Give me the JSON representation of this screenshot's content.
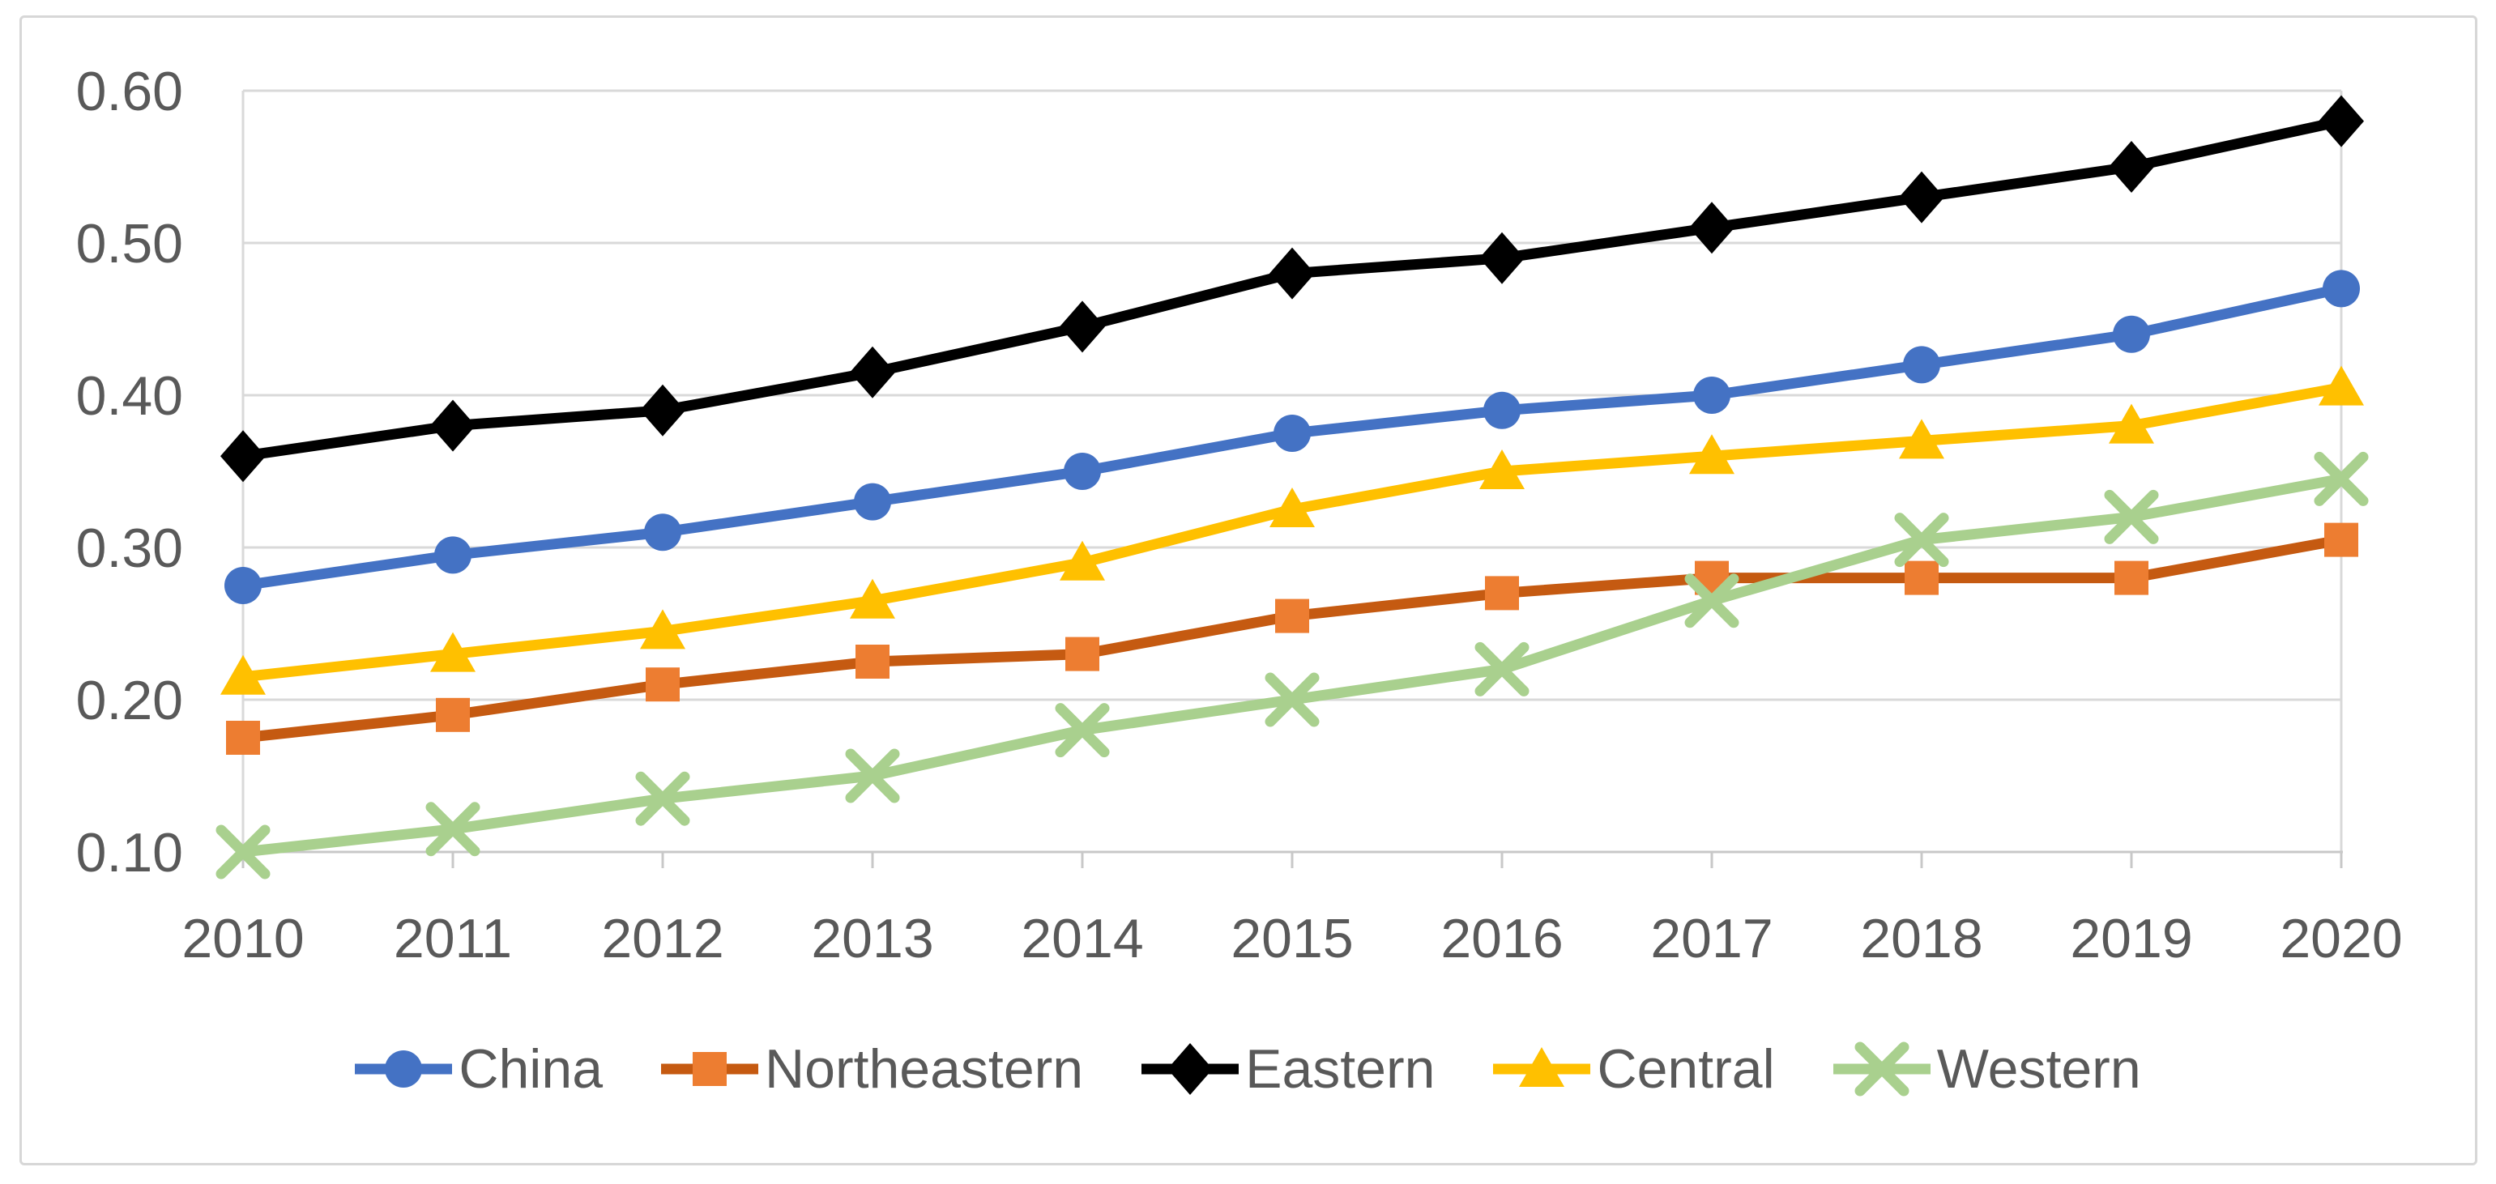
{
  "chart_data": {
    "type": "line",
    "title": "",
    "xlabel": "",
    "ylabel": "",
    "x": [
      "2010",
      "2011",
      "2012",
      "2013",
      "2014",
      "2015",
      "2016",
      "2017",
      "2018",
      "2019",
      "2020"
    ],
    "series": [
      {
        "name": "China",
        "marker": "circle",
        "line_color": "#4472C4",
        "marker_color": "#4472C4",
        "values": [
          0.275,
          0.295,
          0.31,
          0.33,
          0.35,
          0.375,
          0.39,
          0.4,
          0.42,
          0.44,
          0.47
        ]
      },
      {
        "name": "Northeastern",
        "marker": "square",
        "line_color": "#C55A11",
        "marker_color": "#ED7D31",
        "values": [
          0.175,
          0.19,
          0.21,
          0.225,
          0.23,
          0.255,
          0.27,
          0.28,
          0.28,
          0.28,
          0.305
        ]
      },
      {
        "name": "Eastern",
        "marker": "diamond",
        "line_color": "#000000",
        "marker_color": "#000000",
        "values": [
          0.36,
          0.38,
          0.39,
          0.415,
          0.445,
          0.48,
          0.49,
          0.51,
          0.53,
          0.55,
          0.58
        ]
      },
      {
        "name": "Central",
        "marker": "triangle",
        "line_color": "#FFC000",
        "marker_color": "#FFC000",
        "values": [
          0.215,
          0.23,
          0.245,
          0.265,
          0.29,
          0.325,
          0.35,
          0.36,
          0.37,
          0.38,
          0.405
        ]
      },
      {
        "name": "Western",
        "marker": "x",
        "line_color": "#A9D08E",
        "marker_color": "#A9D08E",
        "values": [
          0.1,
          0.115,
          0.135,
          0.15,
          0.18,
          0.2,
          0.22,
          0.265,
          0.305,
          0.32,
          0.345
        ]
      }
    ],
    "ylim": [
      0.1,
      0.6
    ],
    "ytick_step": 0.1,
    "ytick_labels": [
      "0.60",
      "0.50",
      "0.40",
      "0.30",
      "0.20",
      "0.10"
    ],
    "grid": true,
    "legend_position": "bottom",
    "colors": {
      "gridline": "#d9d9d9",
      "axis_line": "#c8c8c8",
      "plot_edge": "#d9d9d9",
      "tick_label": "#595959",
      "figure_border": "#d7d7d7",
      "background": "#ffffff"
    }
  }
}
